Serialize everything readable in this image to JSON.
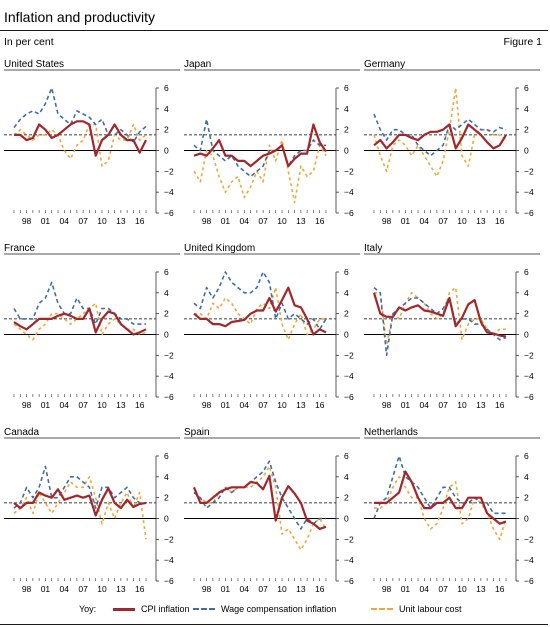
{
  "header": {
    "title": "Inflation and productivity",
    "unit": "In per cent",
    "figure": "Figure 1"
  },
  "legend": {
    "prefix": "Yoy:",
    "cpi": "CPI inflation",
    "wage": "Wage compensation inflation",
    "ulc": "Unit labour cost"
  },
  "colors": {
    "cpi": "#a3262a",
    "wage": "#3d6ea7",
    "ulc": "#f0a73a",
    "zero": "#000000",
    "reference": "#000000"
  },
  "chart_data": [
    {
      "type": "line",
      "title": "United States",
      "ylim": [
        -6,
        6
      ],
      "yticks": [
        -6,
        -4,
        -2,
        0,
        2,
        4,
        6
      ],
      "x_ticks": [
        "98",
        "01",
        "04",
        "07",
        "10",
        "13",
        "16"
      ],
      "reference_line": 1.5,
      "series": [
        {
          "name": "CPI inflation",
          "values": [
            1.5,
            1.5,
            1.0,
            1.2,
            2.5,
            2.0,
            1.2,
            1.5,
            2.0,
            2.5,
            2.8,
            2.8,
            2.5,
            -0.5,
            1.0,
            1.5,
            2.5,
            1.5,
            1.0,
            1.0,
            -0.2,
            1.0
          ]
        },
        {
          "name": "Wage compensation inflation",
          "values": [
            2.2,
            3.0,
            3.5,
            3.8,
            3.5,
            4.5,
            6.0,
            3.5,
            3.0,
            2.5,
            3.8,
            3.5,
            3.2,
            2.5,
            3.0,
            1.5,
            1.5,
            2.0,
            1.5,
            0.8,
            1.8,
            2.3
          ]
        },
        {
          "name": "Unit labour cost",
          "values": [
            1.5,
            2.0,
            1.5,
            1.0,
            1.5,
            1.5,
            2.0,
            1.5,
            0.0,
            -0.8,
            0.5,
            1.0,
            2.5,
            2.5,
            -1.5,
            -1.0,
            1.5,
            1.0,
            1.0,
            2.5,
            1.0,
            1.5
          ]
        }
      ]
    },
    {
      "type": "line",
      "title": "Japan",
      "ylim": [
        -6,
        6
      ],
      "yticks": [
        -6,
        -4,
        -2,
        0,
        2,
        4,
        6
      ],
      "x_ticks": [
        "98",
        "01",
        "04",
        "07",
        "10",
        "13",
        "16"
      ],
      "reference_line": 1.5,
      "series": [
        {
          "name": "CPI inflation",
          "values": [
            -0.5,
            -0.3,
            -0.5,
            0.2,
            1.0,
            -0.5,
            -0.5,
            -1.0,
            -1.0,
            -1.5,
            -1.0,
            -0.5,
            -0.3,
            0.0,
            0.5,
            -1.5,
            -0.8,
            -0.3,
            -0.3,
            2.5,
            0.8,
            -0.1
          ]
        },
        {
          "name": "Wage compensation inflation",
          "values": [
            0.5,
            0.0,
            3.0,
            0.0,
            -0.5,
            -1.0,
            -0.5,
            -1.5,
            -2.0,
            -2.5,
            -2.0,
            -1.5,
            0.0,
            0.0,
            0.5,
            -1.5,
            -0.5,
            0.0,
            0.0,
            1.0,
            0.5,
            0.5
          ]
        },
        {
          "name": "Unit labour cost",
          "values": [
            -2.0,
            -3.0,
            0.0,
            -0.5,
            -2.5,
            -4.0,
            -3.0,
            -2.5,
            -4.5,
            -3.5,
            -2.0,
            -3.0,
            0.5,
            -1.0,
            1.0,
            -2.0,
            -5.0,
            -1.5,
            -2.5,
            -2.0,
            0.5,
            -0.5
          ]
        }
      ]
    },
    {
      "type": "line",
      "title": "Germany",
      "ylim": [
        -6,
        6
      ],
      "yticks": [
        -6,
        -4,
        -2,
        0,
        2,
        4,
        6
      ],
      "x_ticks": [
        "98",
        "01",
        "04",
        "07",
        "10",
        "13",
        "16"
      ],
      "reference_line": 1.5,
      "series": [
        {
          "name": "CPI inflation",
          "values": [
            0.5,
            1.0,
            0.2,
            0.8,
            1.5,
            1.5,
            1.2,
            1.0,
            1.5,
            1.8,
            1.8,
            2.0,
            2.5,
            0.2,
            1.2,
            2.5,
            2.0,
            1.5,
            0.8,
            0.2,
            0.5,
            1.5
          ]
        },
        {
          "name": "Wage compensation inflation",
          "values": [
            3.5,
            2.0,
            1.0,
            2.0,
            2.0,
            1.5,
            1.5,
            0.5,
            0.0,
            -0.5,
            0.0,
            0.5,
            2.5,
            2.0,
            2.5,
            3.0,
            2.5,
            2.0,
            2.0,
            1.8,
            2.2,
            2.0
          ]
        },
        {
          "name": "Unit labour cost",
          "values": [
            1.5,
            -0.5,
            -2.0,
            0.5,
            1.0,
            0.5,
            -0.5,
            0.5,
            -0.5,
            -1.5,
            -2.5,
            -1.0,
            2.0,
            6.0,
            -0.5,
            -1.5,
            1.5,
            2.0,
            2.0,
            1.5,
            1.5,
            1.0
          ]
        }
      ]
    },
    {
      "type": "line",
      "title": "France",
      "ylim": [
        -6,
        6
      ],
      "yticks": [
        -6,
        -4,
        -2,
        0,
        2,
        4,
        6
      ],
      "x_ticks": [
        "98",
        "01",
        "04",
        "07",
        "10",
        "13",
        "16"
      ],
      "reference_line": 1.5,
      "series": [
        {
          "name": "CPI inflation",
          "values": [
            1.2,
            0.8,
            0.5,
            1.0,
            1.5,
            1.5,
            1.5,
            1.8,
            2.0,
            1.8,
            1.5,
            1.5,
            2.5,
            0.2,
            1.5,
            2.2,
            2.0,
            1.0,
            0.5,
            0.0,
            0.2,
            0.5
          ]
        },
        {
          "name": "Wage compensation inflation",
          "values": [
            2.5,
            1.5,
            1.5,
            1.5,
            3.0,
            3.5,
            5.0,
            3.0,
            2.0,
            2.0,
            3.5,
            2.5,
            2.5,
            1.0,
            2.5,
            2.5,
            2.0,
            1.5,
            1.5,
            1.0,
            1.0,
            1.0
          ]
        },
        {
          "name": "Unit labour cost",
          "values": [
            1.0,
            0.5,
            0.0,
            -0.5,
            0.5,
            1.0,
            2.0,
            2.0,
            1.5,
            1.0,
            1.5,
            2.0,
            2.5,
            3.0,
            0.0,
            1.0,
            1.5,
            1.0,
            0.5,
            0.5,
            0.0,
            0.2
          ]
        }
      ]
    },
    {
      "type": "line",
      "title": "United Kingdom",
      "ylim": [
        -6,
        6
      ],
      "yticks": [
        -6,
        -4,
        -2,
        0,
        2,
        4,
        6
      ],
      "x_ticks": [
        "98",
        "01",
        "04",
        "07",
        "10",
        "13",
        "16"
      ],
      "reference_line": 1.5,
      "series": [
        {
          "name": "CPI inflation",
          "values": [
            2.0,
            1.5,
            1.5,
            1.0,
            1.0,
            0.8,
            1.2,
            1.3,
            1.4,
            2.0,
            2.3,
            2.3,
            3.5,
            2.2,
            3.3,
            4.5,
            2.8,
            2.6,
            1.5,
            0.0,
            0.5,
            0.2
          ]
        },
        {
          "name": "Wage compensation inflation",
          "values": [
            3.0,
            2.5,
            4.5,
            3.5,
            4.5,
            6.0,
            5.0,
            4.5,
            4.0,
            4.0,
            4.5,
            6.0,
            5.0,
            1.5,
            3.0,
            1.5,
            2.0,
            1.5,
            1.0,
            1.5,
            0.5,
            1.5
          ]
        },
        {
          "name": "Unit labour cost",
          "values": [
            2.0,
            2.0,
            1.5,
            3.0,
            2.5,
            3.5,
            3.0,
            2.0,
            1.5,
            1.0,
            2.5,
            3.0,
            2.5,
            4.5,
            1.0,
            -0.5,
            1.0,
            2.0,
            0.0,
            0.5,
            1.5,
            1.5
          ]
        }
      ]
    },
    {
      "type": "line",
      "title": "Italy",
      "ylim": [
        -6,
        6
      ],
      "yticks": [
        -6,
        -4,
        -2,
        0,
        2,
        4,
        6
      ],
      "x_ticks": [
        "98",
        "01",
        "04",
        "07",
        "10",
        "13",
        "16"
      ],
      "reference_line": 1.5,
      "series": [
        {
          "name": "CPI inflation",
          "values": [
            4.0,
            2.0,
            1.7,
            1.7,
            2.6,
            2.3,
            2.6,
            2.8,
            2.3,
            2.2,
            2.0,
            1.8,
            3.5,
            0.8,
            1.6,
            2.9,
            3.3,
            1.2,
            0.2,
            0.1,
            -0.1,
            -0.2
          ]
        },
        {
          "name": "Wage compensation inflation",
          "values": [
            4.5,
            4.0,
            -2.0,
            2.0,
            2.5,
            3.0,
            3.5,
            3.5,
            3.0,
            2.5,
            2.0,
            2.5,
            3.5,
            1.0,
            1.5,
            1.5,
            1.0,
            1.0,
            0.5,
            0.0,
            -0.5,
            -0.3
          ]
        },
        {
          "name": "Unit labour cost",
          "values": [
            4.0,
            4.0,
            -1.0,
            2.0,
            1.5,
            3.0,
            4.0,
            3.5,
            3.0,
            2.0,
            1.5,
            2.0,
            4.0,
            4.5,
            -0.5,
            1.0,
            1.5,
            1.5,
            0.5,
            0.0,
            0.5,
            0.5
          ]
        }
      ]
    },
    {
      "type": "line",
      "title": "Canada",
      "ylim": [
        -6,
        6
      ],
      "yticks": [
        -6,
        -4,
        -2,
        0,
        2,
        4,
        6
      ],
      "x_ticks": [
        "98",
        "01",
        "04",
        "07",
        "10",
        "13",
        "16"
      ],
      "reference_line": 1.5,
      "series": [
        {
          "name": "CPI inflation",
          "values": [
            1.5,
            1.0,
            1.5,
            1.5,
            2.5,
            2.2,
            2.0,
            2.8,
            1.8,
            2.0,
            2.2,
            2.0,
            2.2,
            0.3,
            1.8,
            2.9,
            1.5,
            1.0,
            1.8,
            1.1,
            1.4,
            1.5
          ]
        },
        {
          "name": "Wage compensation inflation",
          "values": [
            1.0,
            1.5,
            3.0,
            2.0,
            3.0,
            5.0,
            2.0,
            2.0,
            3.0,
            4.0,
            4.0,
            3.5,
            3.0,
            1.0,
            3.0,
            3.0,
            2.0,
            2.5,
            3.0,
            2.0,
            1.5,
            1.5
          ]
        },
        {
          "name": "Unit labour cost",
          "values": [
            0.5,
            1.0,
            2.0,
            0.5,
            2.5,
            1.5,
            0.5,
            1.5,
            2.5,
            3.5,
            3.0,
            3.0,
            4.0,
            2.0,
            -0.5,
            1.5,
            0.0,
            1.5,
            2.5,
            1.0,
            2.5,
            -2.0
          ]
        }
      ]
    },
    {
      "type": "line",
      "title": "Spain",
      "ylim": [
        -6,
        6
      ],
      "yticks": [
        -6,
        -4,
        -2,
        0,
        2,
        4,
        6
      ],
      "x_ticks": [
        "98",
        "01",
        "04",
        "07",
        "10",
        "13",
        "16"
      ],
      "reference_line": 1.5,
      "series": [
        {
          "name": "CPI inflation",
          "values": [
            3.0,
            1.5,
            1.5,
            2.0,
            2.5,
            2.8,
            3.0,
            3.0,
            3.0,
            3.5,
            3.4,
            2.8,
            4.1,
            -0.2,
            2.0,
            3.1,
            2.4,
            1.5,
            -0.2,
            -0.5,
            -1.0,
            -0.8
          ]
        },
        {
          "name": "Wage compensation inflation",
          "values": [
            2.5,
            2.0,
            1.0,
            1.5,
            2.0,
            3.0,
            2.5,
            3.0,
            3.0,
            3.5,
            4.0,
            4.5,
            5.5,
            3.5,
            2.0,
            1.0,
            0.0,
            -1.0,
            0.0,
            -0.5,
            0.0,
            0.0
          ]
        },
        {
          "name": "Unit labour cost",
          "values": [
            2.5,
            2.0,
            1.5,
            1.5,
            2.5,
            3.0,
            2.5,
            3.0,
            3.0,
            3.0,
            3.5,
            4.0,
            5.0,
            3.0,
            -1.5,
            -1.0,
            -2.0,
            -3.0,
            -2.0,
            -0.5,
            0.0,
            -1.0
          ]
        }
      ]
    },
    {
      "type": "line",
      "title": "Netherlands",
      "ylim": [
        -6,
        6
      ],
      "yticks": [
        -6,
        -4,
        -2,
        0,
        2,
        4,
        6
      ],
      "x_ticks": [
        "98",
        "01",
        "04",
        "07",
        "10",
        "13",
        "16"
      ],
      "reference_line": 1.5,
      "series": [
        {
          "name": "CPI inflation",
          "values": [
            1.5,
            1.5,
            1.5,
            2.0,
            2.5,
            4.5,
            3.5,
            2.0,
            1.0,
            1.0,
            1.5,
            1.5,
            2.0,
            1.0,
            1.0,
            2.0,
            2.0,
            2.0,
            0.5,
            0.0,
            -0.5,
            -0.3
          ]
        },
        {
          "name": "Wage compensation inflation",
          "values": [
            0.0,
            1.5,
            2.0,
            4.0,
            6.0,
            4.0,
            3.5,
            3.0,
            2.0,
            1.0,
            2.0,
            3.0,
            3.0,
            2.0,
            1.5,
            1.5,
            2.0,
            1.5,
            1.5,
            0.5,
            0.5,
            0.5
          ]
        },
        {
          "name": "Unit labour cost",
          "values": [
            1.0,
            1.0,
            1.5,
            3.0,
            4.0,
            3.0,
            2.0,
            2.0,
            0.0,
            -1.0,
            -0.5,
            1.0,
            3.0,
            3.5,
            -0.5,
            0.0,
            2.0,
            1.5,
            0.5,
            -1.0,
            -2.0,
            0.0
          ]
        }
      ]
    }
  ]
}
